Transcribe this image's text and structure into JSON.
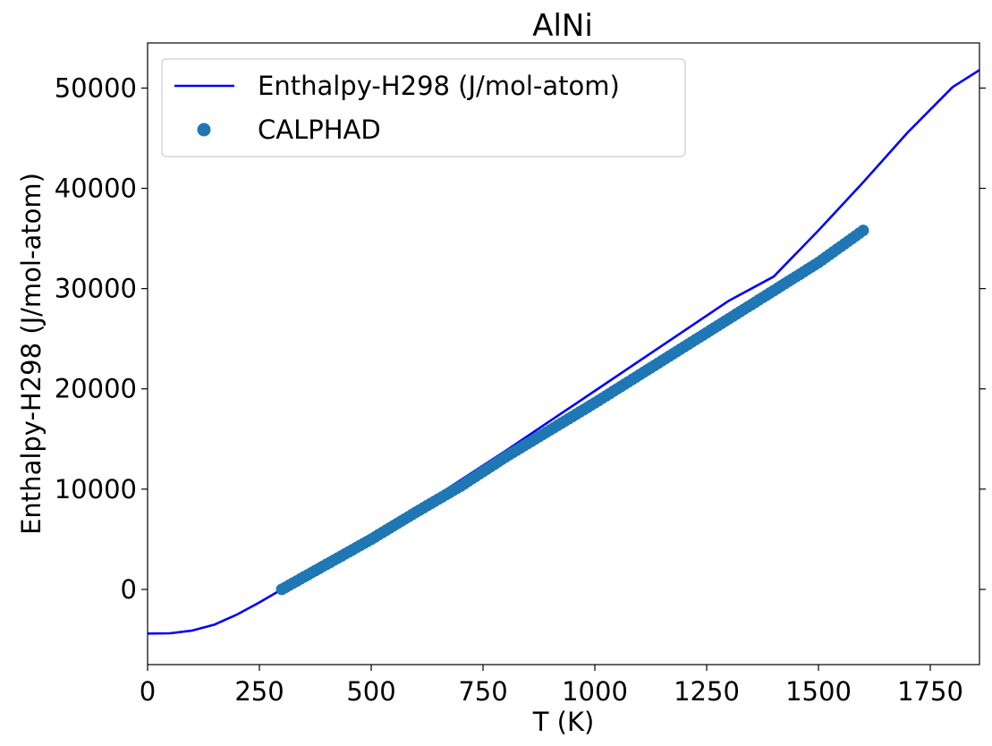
{
  "chart_data": {
    "type": "line",
    "title": "AlNi",
    "xlabel": "T (K)",
    "ylabel": "Enthalpy-H298 (J/mol-atom)",
    "xlim": [
      0,
      1860
    ],
    "ylim": [
      -7500,
      54500
    ],
    "xticks": [
      0,
      250,
      500,
      750,
      1000,
      1250,
      1500,
      1750
    ],
    "yticks": [
      0,
      10000,
      20000,
      30000,
      40000,
      50000
    ],
    "grid": false,
    "legend_position": "top-left",
    "series": [
      {
        "name": "Enthalpy-H298 (J/mol-atom)",
        "style": "line",
        "color": "#0000ff",
        "x": [
          0,
          50,
          100,
          150,
          200,
          250,
          300,
          400,
          500,
          600,
          700,
          800,
          900,
          1000,
          1100,
          1200,
          1300,
          1400,
          1500,
          1600,
          1700,
          1800,
          1860
        ],
        "y": [
          -4400,
          -4380,
          -4100,
          -3500,
          -2500,
          -1300,
          0,
          2600,
          5200,
          8000,
          10900,
          13800,
          16800,
          19800,
          22800,
          25800,
          28800,
          31200,
          35800,
          40600,
          45600,
          50100,
          51800
        ]
      },
      {
        "name": "CALPHAD",
        "style": "scatter",
        "color": "#1f77b4",
        "x": [
          300,
          400,
          500,
          600,
          700,
          800,
          900,
          1000,
          1100,
          1200,
          1300,
          1400,
          1500,
          1600
        ],
        "y": [
          0,
          2500,
          5000,
          7700,
          10300,
          13200,
          15900,
          18600,
          21400,
          24200,
          27000,
          29800,
          32600,
          35800
        ]
      }
    ]
  }
}
